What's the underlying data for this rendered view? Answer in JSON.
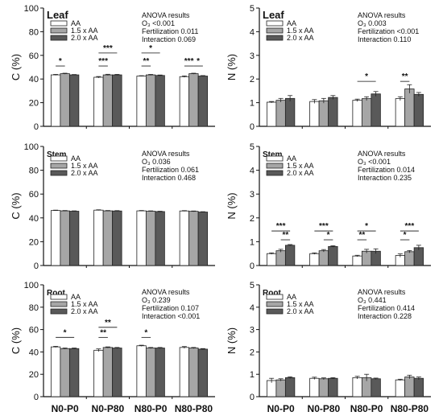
{
  "figure": {
    "legend_labels": [
      "AA",
      "1.5 x AA",
      "2.0 x AA"
    ],
    "series_colors": [
      "#ffffff",
      "#a6a6a6",
      "#595959"
    ],
    "categories": [
      "N0-P0",
      "N0-P80",
      "N80-P0",
      "N80-P80"
    ]
  },
  "chart_data": [
    {
      "type": "bar",
      "panel": "C-Leaf",
      "tissue_label": "Leaf",
      "ylabel": "C (%)",
      "ylim": [
        0,
        100
      ],
      "yticks": [
        0,
        20,
        40,
        60,
        80,
        100
      ],
      "categories": [
        "N0-P0",
        "N0-P80",
        "N80-P0",
        "N80-P80"
      ],
      "show_categories": false,
      "series": [
        {
          "name": "AA",
          "values": [
            43.5,
            41.5,
            42.5,
            42
          ],
          "errors": [
            0.4,
            0.6,
            0.3,
            0.6
          ]
        },
        {
          "name": "1.5 x AA",
          "values": [
            44.5,
            43.5,
            43.5,
            44.5
          ],
          "errors": [
            0.4,
            0.5,
            0.4,
            0.4
          ]
        },
        {
          "name": "2.0 x AA",
          "values": [
            43.5,
            43.5,
            43,
            42.5
          ],
          "errors": [
            0.3,
            0.4,
            0.4,
            0.4
          ]
        }
      ],
      "anova": {
        "title": "ANOVA results",
        "lines": [
          "O₃ <0.001",
          "Fertilization 0.011",
          "Interaction 0.069"
        ]
      },
      "annotations": [
        {
          "group": 0,
          "from": 0,
          "to": 1,
          "level": 51,
          "label": "*"
        },
        {
          "group": 1,
          "from": 0,
          "to": 2,
          "level": 62,
          "label": "***"
        },
        {
          "group": 1,
          "from": 0,
          "to": 1,
          "level": 51,
          "label": "***"
        },
        {
          "group": 2,
          "from": 0,
          "to": 2,
          "level": 62,
          "label": "*"
        },
        {
          "group": 2,
          "from": 0,
          "to": 1,
          "level": 51,
          "label": "**"
        },
        {
          "group": 3,
          "from": 0,
          "to": 1,
          "level": 51,
          "label": "***"
        },
        {
          "group": 3,
          "from": 1,
          "to": 2,
          "level": 51,
          "label": "*"
        }
      ]
    },
    {
      "type": "bar",
      "panel": "N-Leaf",
      "tissue_label": "Leaf",
      "ylabel": "N (%)",
      "ylim": [
        0,
        5
      ],
      "yticks": [
        0,
        1,
        2,
        3,
        4,
        5
      ],
      "categories": [
        "N0-P0",
        "N0-P80",
        "N80-P0",
        "N80-P80"
      ],
      "show_categories": false,
      "series": [
        {
          "name": "AA",
          "values": [
            1.02,
            1.05,
            1.1,
            1.17
          ],
          "errors": [
            0.03,
            0.08,
            0.05,
            0.08
          ]
        },
        {
          "name": "1.5 x AA",
          "values": [
            1.1,
            1.08,
            1.17,
            1.58
          ],
          "errors": [
            0.08,
            0.1,
            0.08,
            0.18
          ]
        },
        {
          "name": "2.0 x AA",
          "values": [
            1.18,
            1.22,
            1.37,
            1.35
          ],
          "errors": [
            0.12,
            0.08,
            0.1,
            0.08
          ]
        }
      ],
      "anova": {
        "title": "ANOVA results",
        "lines": [
          "O₃ 0.003",
          "Fertilization <0.001",
          "Interaction 0.110"
        ]
      },
      "annotations": [
        {
          "group": 2,
          "from": 0,
          "to": 2,
          "level": 1.9,
          "label": "*"
        },
        {
          "group": 3,
          "from": 0,
          "to": 1,
          "level": 1.9,
          "label": "**"
        }
      ]
    },
    {
      "type": "bar",
      "panel": "C-Stem",
      "tissue_label": "Stem",
      "ylabel": "C (%)",
      "ylim": [
        0,
        100
      ],
      "yticks": [
        0,
        20,
        40,
        60,
        80,
        100
      ],
      "categories": [
        "N0-P0",
        "N0-P80",
        "N80-P0",
        "N80-P80"
      ],
      "show_categories": false,
      "series": [
        {
          "name": "AA",
          "values": [
            46.2,
            46.5,
            45.9,
            45.8
          ],
          "errors": [
            0.3,
            0.3,
            0.3,
            0.3
          ]
        },
        {
          "name": "1.5 x AA",
          "values": [
            45.9,
            45.9,
            45.6,
            45.5
          ],
          "errors": [
            0.3,
            0.3,
            0.3,
            0.3
          ]
        },
        {
          "name": "2.0 x AA",
          "values": [
            45.6,
            45.8,
            45.3,
            44.9
          ],
          "errors": [
            0.3,
            0.3,
            0.3,
            0.3
          ]
        }
      ],
      "anova": {
        "title": "ANOVA results",
        "lines": [
          "O₃ 0.036",
          "Fertilization 0.061",
          "Interaction 0.468"
        ]
      },
      "annotations": []
    },
    {
      "type": "bar",
      "panel": "N-Stem",
      "tissue_label": "Stem",
      "ylabel": "N (%)",
      "ylim": [
        0,
        5
      ],
      "yticks": [
        0,
        1,
        2,
        3,
        4,
        5
      ],
      "categories": [
        "N0-P0",
        "N0-P80",
        "N80-P0",
        "N80-P80"
      ],
      "show_categories": false,
      "series": [
        {
          "name": "AA",
          "values": [
            0.5,
            0.5,
            0.4,
            0.42
          ],
          "errors": [
            0.03,
            0.03,
            0.03,
            0.07
          ]
        },
        {
          "name": "1.5 x AA",
          "values": [
            0.62,
            0.62,
            0.6,
            0.58
          ],
          "errors": [
            0.06,
            0.05,
            0.08,
            0.05
          ]
        },
        {
          "name": "2.0 x AA",
          "values": [
            0.85,
            0.8,
            0.6,
            0.75
          ],
          "errors": [
            0.03,
            0.03,
            0.1,
            0.1
          ]
        }
      ],
      "anova": {
        "title": "ANOVA results",
        "lines": [
          "O₃ <0.001",
          "Fertilization 0.014",
          "Interaction 0.235"
        ]
      },
      "annotations": [
        {
          "group": 0,
          "from": 0,
          "to": 2,
          "level": 1.45,
          "label": "***"
        },
        {
          "group": 0,
          "from": 1,
          "to": 2,
          "level": 1.08,
          "label": "**"
        },
        {
          "group": 1,
          "from": 0,
          "to": 2,
          "level": 1.45,
          "label": "***"
        },
        {
          "group": 1,
          "from": 1,
          "to": 2,
          "level": 1.08,
          "label": "*"
        },
        {
          "group": 2,
          "from": 0,
          "to": 2,
          "level": 1.45,
          "label": "*"
        },
        {
          "group": 2,
          "from": 0,
          "to": 1,
          "level": 1.08,
          "label": "**"
        },
        {
          "group": 3,
          "from": 0,
          "to": 2,
          "level": 1.45,
          "label": "***"
        },
        {
          "group": 3,
          "from": 0,
          "to": 1,
          "level": 1.08,
          "label": "*"
        }
      ]
    },
    {
      "type": "bar",
      "panel": "C-Root",
      "tissue_label": "Root",
      "ylabel": "C (%)",
      "ylim": [
        0,
        100
      ],
      "yticks": [
        0,
        20,
        40,
        60,
        80,
        100
      ],
      "categories": [
        "N0-P0",
        "N0-P80",
        "N80-P0",
        "N80-P80"
      ],
      "show_categories": true,
      "series": [
        {
          "name": "AA",
          "values": [
            44.5,
            41.5,
            45.5,
            44
          ],
          "errors": [
            0.5,
            1.2,
            0.5,
            0.8
          ]
        },
        {
          "name": "1.5 x AA",
          "values": [
            43,
            44,
            43.5,
            43.5
          ],
          "errors": [
            0.5,
            0.5,
            0.5,
            0.5
          ]
        },
        {
          "name": "2.0 x AA",
          "values": [
            43,
            43.5,
            43.5,
            42.5
          ],
          "errors": [
            0.5,
            0.5,
            0.5,
            0.5
          ]
        }
      ],
      "anova": {
        "title": "ANOVA results",
        "lines": [
          "O₃ 0.239",
          "Fertilization 0.107",
          "Interaction <0.001"
        ]
      },
      "annotations": [
        {
          "group": 0,
          "from": 0,
          "to": 2,
          "level": 53,
          "label": "*"
        },
        {
          "group": 1,
          "from": 0,
          "to": 2,
          "level": 62,
          "label": "**"
        },
        {
          "group": 1,
          "from": 0,
          "to": 1,
          "level": 53,
          "label": "**"
        },
        {
          "group": 2,
          "from": 0,
          "to": 1,
          "level": 53,
          "label": "*"
        }
      ]
    },
    {
      "type": "bar",
      "panel": "N-Root",
      "tissue_label": "Root",
      "ylabel": "N (%)",
      "ylim": [
        0,
        5
      ],
      "yticks": [
        0,
        1,
        2,
        3,
        4,
        5
      ],
      "categories": [
        "N0-P0",
        "N0-P80",
        "N80-P0",
        "N80-P80"
      ],
      "show_categories": true,
      "series": [
        {
          "name": "AA",
          "values": [
            0.72,
            0.82,
            0.85,
            0.75
          ],
          "errors": [
            0.1,
            0.05,
            0.06,
            0.03
          ]
        },
        {
          "name": "1.5 x AA",
          "values": [
            0.75,
            0.8,
            0.85,
            0.88
          ],
          "errors": [
            0.05,
            0.04,
            0.15,
            0.08
          ]
        },
        {
          "name": "2.0 x AA",
          "values": [
            0.85,
            0.82,
            0.8,
            0.82
          ],
          "errors": [
            0.04,
            0.03,
            0.03,
            0.06
          ]
        }
      ],
      "anova": {
        "title": "ANOVA results",
        "lines": [
          "O₃ 0.441",
          "Fertilization 0.414",
          "Interaction 0.228"
        ]
      },
      "annotations": []
    }
  ]
}
